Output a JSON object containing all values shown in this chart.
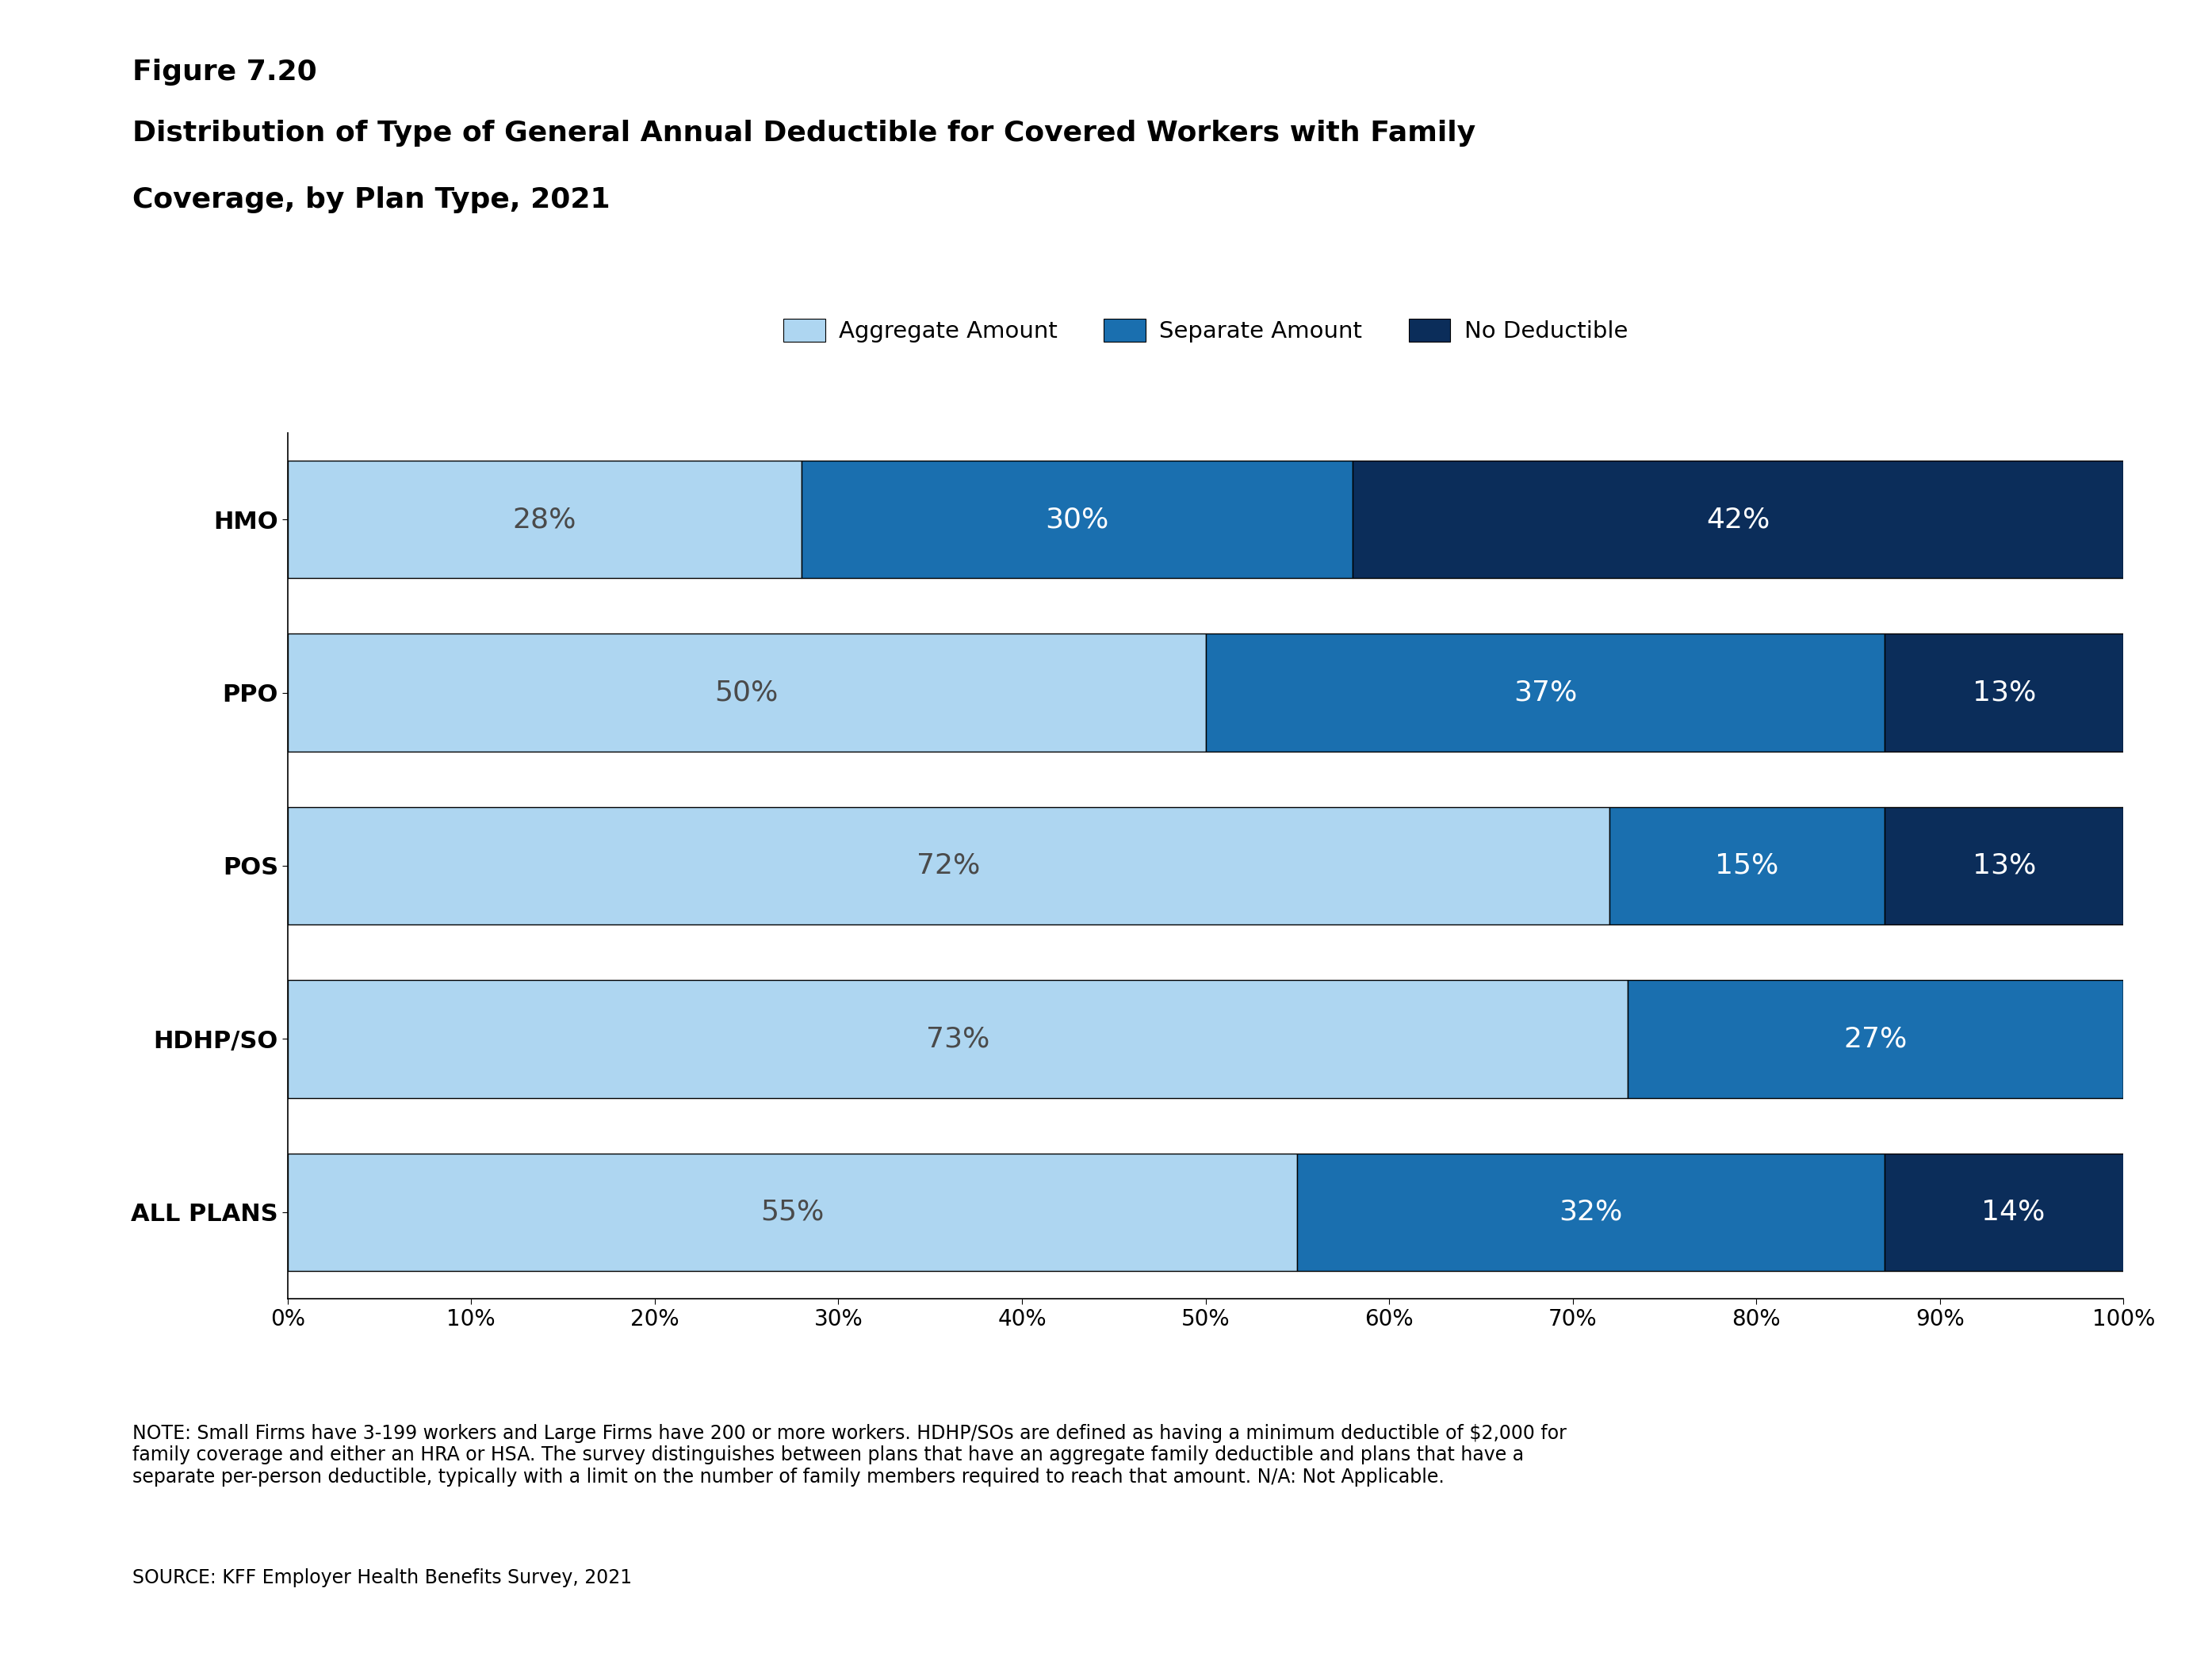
{
  "title_line1": "Figure 7.20",
  "title_line2": "Distribution of Type of General Annual Deductible for Covered Workers with Family",
  "title_line3": "Coverage, by Plan Type, 2021",
  "categories": [
    "HMO",
    "PPO",
    "POS",
    "HDHP/SO",
    "ALL PLANS"
  ],
  "aggregate": [
    28,
    50,
    72,
    73,
    55
  ],
  "separate": [
    30,
    37,
    15,
    27,
    32
  ],
  "no_deductible": [
    42,
    13,
    13,
    0,
    14
  ],
  "color_aggregate": "#aed6f1",
  "color_separate": "#1a6faf",
  "color_no_deductible": "#0b2d5a",
  "legend_labels": [
    "Aggregate Amount",
    "Separate Amount",
    "No Deductible"
  ],
  "note_text": "NOTE: Small Firms have 3-199 workers and Large Firms have 200 or more workers. HDHP/SOs are defined as having a minimum deductible of $2,000 for\nfamily coverage and either an HRA or HSA. The survey distinguishes between plans that have an aggregate family deductible and plans that have a\nseparate per-person deductible, typically with a limit on the number of family members required to reach that amount. N/A: Not Applicable.",
  "source_text": "SOURCE: KFF Employer Health Benefits Survey, 2021",
  "bar_text_color_aggregate": "#4a4a4a",
  "bar_text_color_dark": "#ffffff",
  "background_color": "#ffffff",
  "title1_fontsize": 26,
  "title2_fontsize": 26,
  "ylabel_fontsize": 22,
  "tick_fontsize": 20,
  "note_fontsize": 17,
  "bar_text_fontsize": 26,
  "legend_fontsize": 21
}
